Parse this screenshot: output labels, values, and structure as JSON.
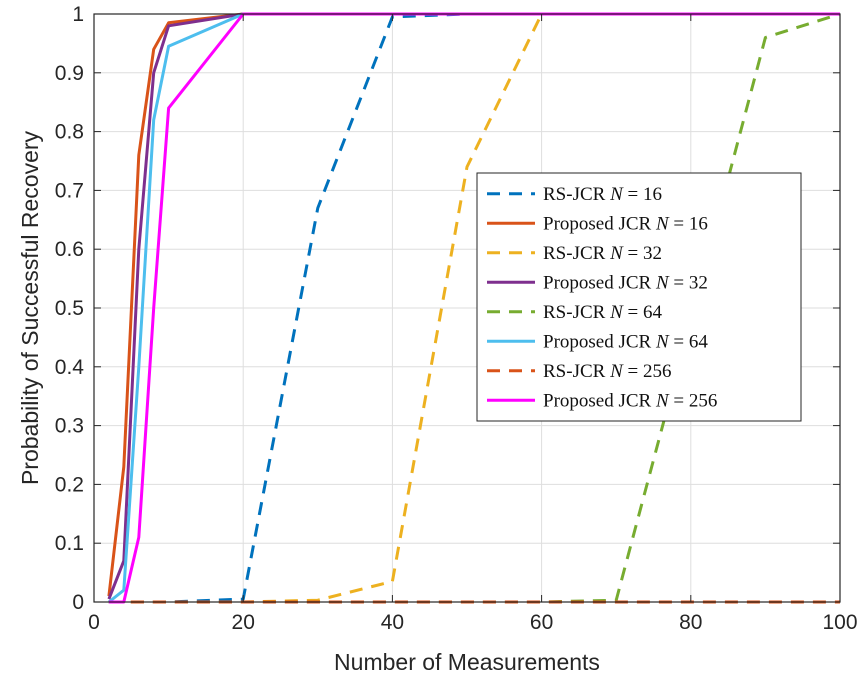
{
  "chart_data": {
    "type": "line",
    "xlabel": "Number of Measurements",
    "ylabel": "Probability of Successful Recovery",
    "xlim": [
      0,
      100
    ],
    "ylim": [
      0,
      1
    ],
    "x_ticks": [
      0,
      20,
      40,
      60,
      80,
      100
    ],
    "y_ticks": [
      0,
      0.1,
      0.2,
      0.3,
      0.4,
      0.5,
      0.6,
      0.7,
      0.8,
      0.9,
      1
    ],
    "grid": true,
    "legend_placement": "center-right",
    "series": [
      {
        "name_prefix": "RS-JCR",
        "name_var": "N",
        "name_eq": " = 16",
        "color": "#0072BD",
        "dash": true,
        "x": [
          2,
          4,
          6,
          8,
          10,
          20,
          30,
          40,
          50,
          60,
          70,
          80,
          90,
          100
        ],
        "y": [
          0,
          0,
          0,
          0,
          0,
          0.005,
          0.67,
          0.995,
          1,
          1,
          1,
          1,
          1,
          1
        ]
      },
      {
        "name_prefix": "Proposed JCR",
        "name_var": "N",
        "name_eq": " = 16",
        "color": "#D95319",
        "dash": false,
        "x": [
          2,
          4,
          6,
          8,
          10,
          20,
          30,
          40,
          50,
          60,
          70,
          80,
          90,
          100
        ],
        "y": [
          0.01,
          0.23,
          0.76,
          0.94,
          0.985,
          1,
          1,
          1,
          1,
          1,
          1,
          1,
          1,
          1
        ]
      },
      {
        "name_prefix": "RS-JCR",
        "name_var": "N",
        "name_eq": " = 32",
        "color": "#EDB120",
        "dash": true,
        "x": [
          2,
          4,
          6,
          8,
          10,
          20,
          30,
          40,
          50,
          60,
          70,
          80,
          90,
          100
        ],
        "y": [
          0,
          0,
          0,
          0,
          0,
          0,
          0.003,
          0.035,
          0.74,
          1,
          1,
          1,
          1,
          1
        ]
      },
      {
        "name_prefix": "Proposed JCR",
        "name_var": "N",
        "name_eq": " = 32",
        "color": "#7E2F8E",
        "dash": false,
        "x": [
          2,
          4,
          6,
          8,
          10,
          20,
          30,
          40,
          50,
          60,
          70,
          80,
          90,
          100
        ],
        "y": [
          0.005,
          0.07,
          0.6,
          0.9,
          0.98,
          1,
          1,
          1,
          1,
          1,
          1,
          1,
          1,
          1
        ]
      },
      {
        "name_prefix": "RS-JCR",
        "name_var": "N",
        "name_eq": " = 64",
        "color": "#77AC30",
        "dash": true,
        "x": [
          2,
          4,
          6,
          8,
          10,
          20,
          30,
          40,
          50,
          60,
          70,
          80,
          90,
          100
        ],
        "y": [
          0,
          0,
          0,
          0,
          0,
          0,
          0,
          0,
          0,
          0,
          0.003,
          0.48,
          0.96,
          1
        ]
      },
      {
        "name_prefix": "Proposed JCR",
        "name_var": "N",
        "name_eq": " = 64",
        "color": "#4DBEEE",
        "dash": false,
        "x": [
          2,
          4,
          6,
          8,
          10,
          20,
          30,
          40,
          50,
          60,
          70,
          80,
          90,
          100
        ],
        "y": [
          0,
          0.02,
          0.4,
          0.82,
          0.945,
          1,
          1,
          1,
          1,
          1,
          1,
          1,
          1,
          1
        ]
      },
      {
        "name_prefix": "RS-JCR",
        "name_var": "N",
        "name_eq": " = 256",
        "color": "#D95319",
        "dash": true,
        "x": [
          2,
          4,
          6,
          8,
          10,
          20,
          30,
          40,
          50,
          60,
          70,
          80,
          90,
          100
        ],
        "y": [
          0,
          0,
          0,
          0,
          0,
          0,
          0,
          0,
          0,
          0,
          0,
          0,
          0,
          0
        ]
      },
      {
        "name_prefix": "Proposed JCR",
        "name_var": "N",
        "name_eq": " = 256",
        "color": "#FF00FF",
        "dash": false,
        "x": [
          2,
          4,
          6,
          8,
          10,
          20,
          30,
          40,
          50,
          60,
          70,
          80,
          90,
          100
        ],
        "y": [
          0,
          0,
          0.11,
          0.5,
          0.84,
          1,
          1,
          1,
          1,
          1,
          1,
          1,
          1,
          1
        ]
      }
    ]
  }
}
